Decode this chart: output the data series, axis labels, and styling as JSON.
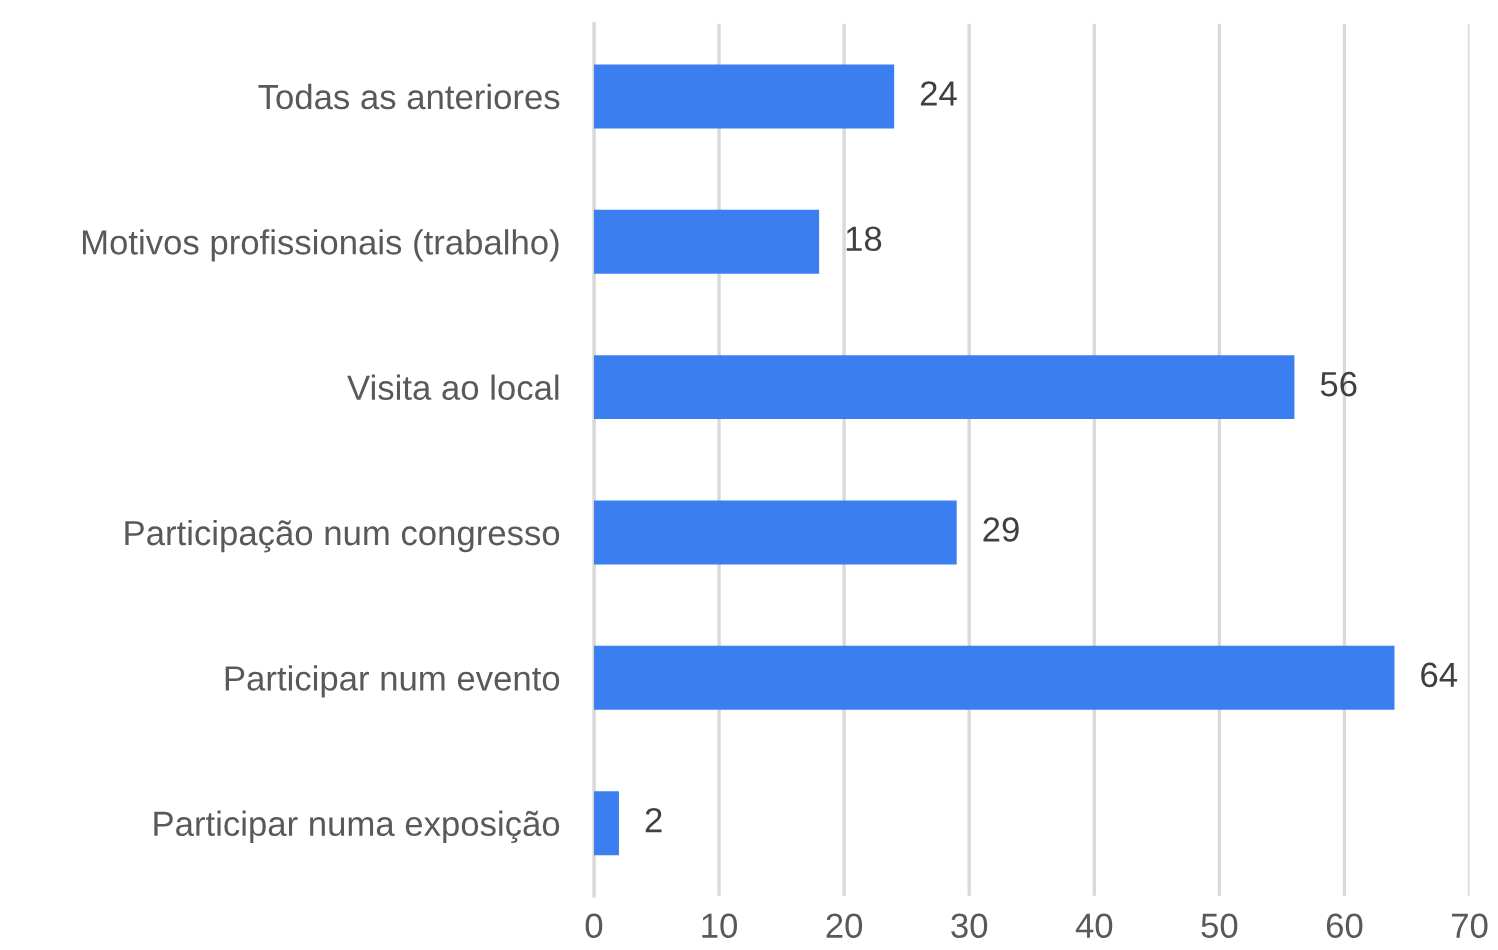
{
  "chart_data": {
    "type": "bar",
    "orientation": "horizontal",
    "categories": [
      "Todas as anteriores",
      "Motivos profissionais (trabalho)",
      "Visita ao local",
      "Participação num congresso",
      "Participar num evento",
      "Participar numa exposição"
    ],
    "values": [
      24,
      18,
      56,
      29,
      64,
      2
    ],
    "color": "#3b7ef0",
    "xlim": [
      0,
      70
    ],
    "xticks": [
      0,
      10,
      20,
      30,
      40,
      50,
      60,
      70
    ],
    "grid": "x",
    "data_labels": true
  }
}
